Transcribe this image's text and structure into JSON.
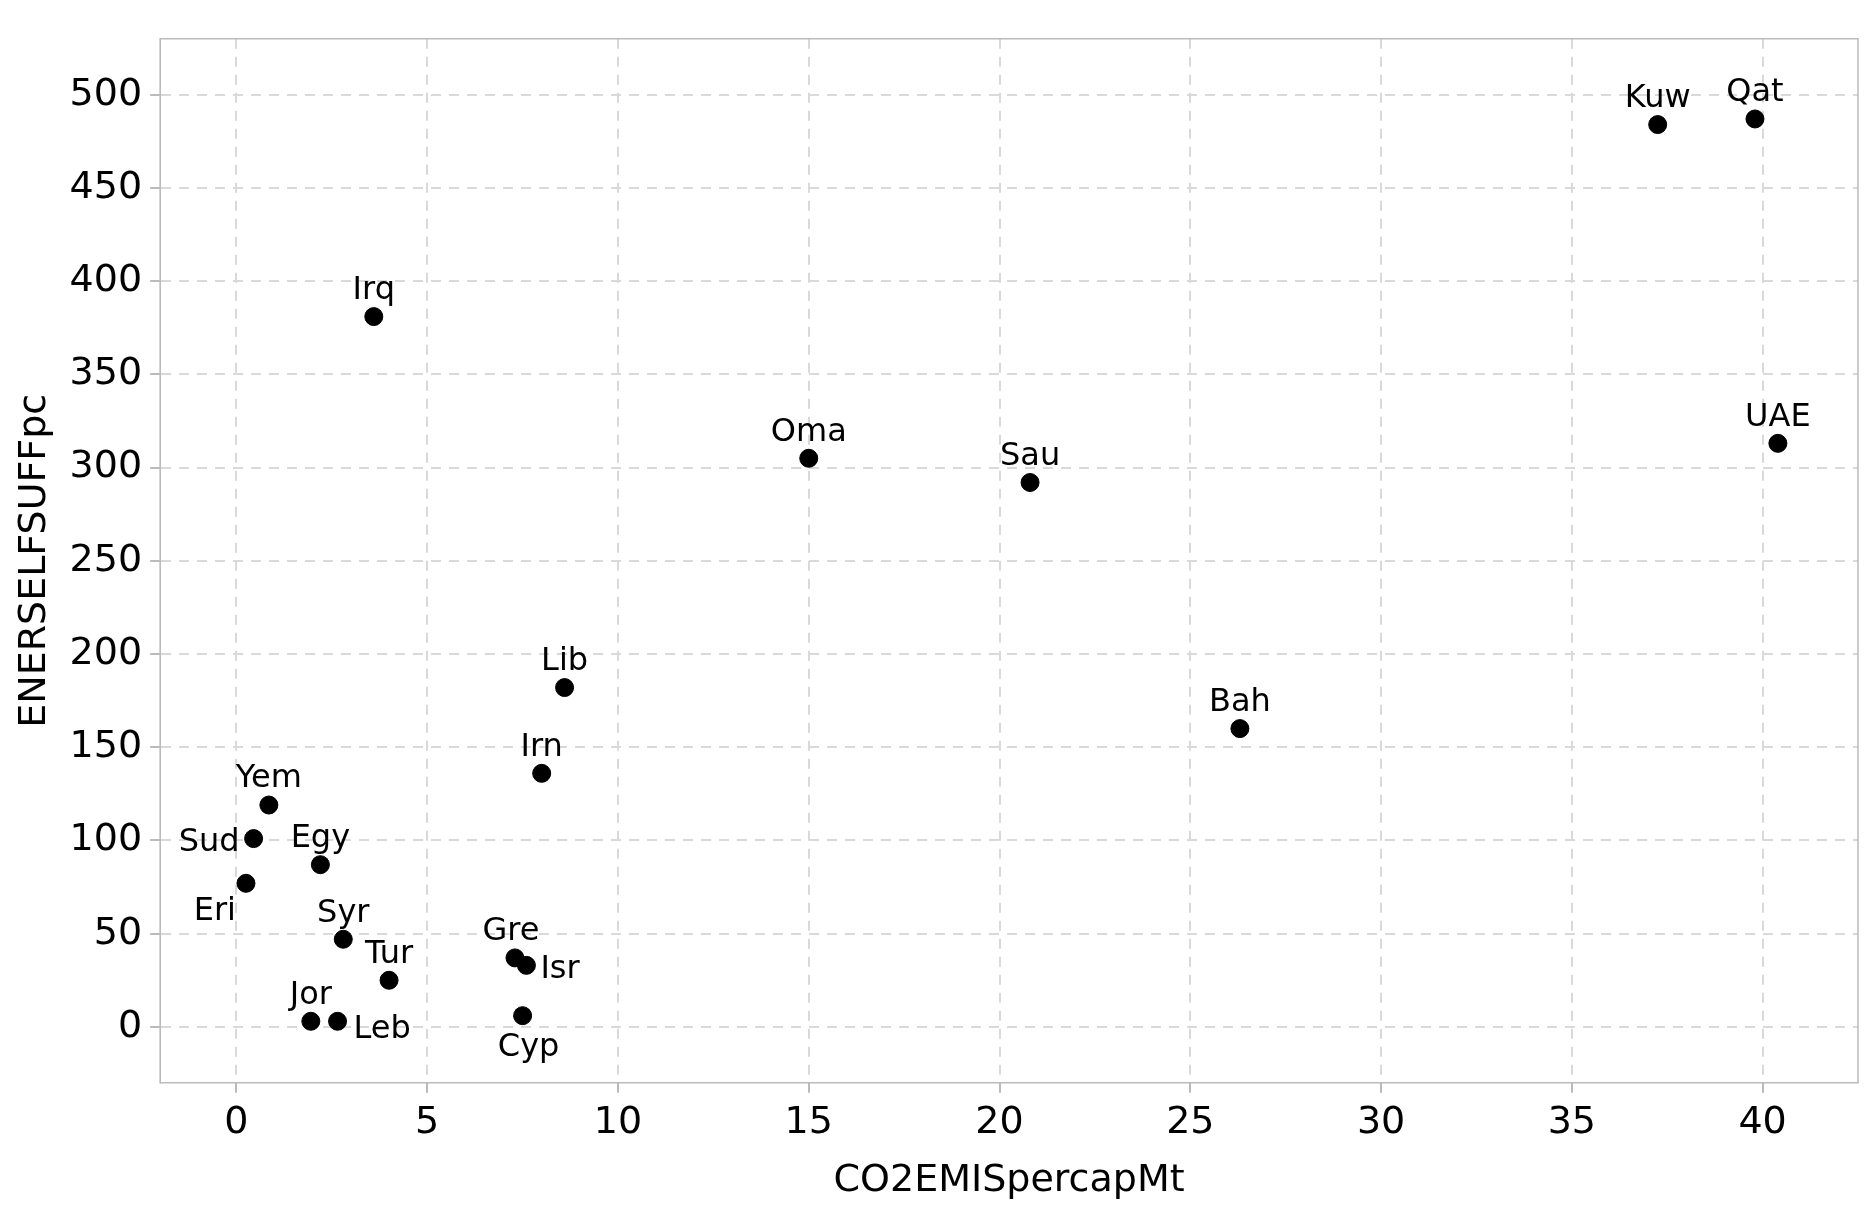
{
  "chart_data": {
    "type": "scatter",
    "xlabel": "CO2EMISpercapMt",
    "ylabel": "ENERSELFSUFFpc",
    "color": "#000000",
    "marker": "circle",
    "grid": true,
    "legend": false,
    "x": [
      37.25,
      39.8,
      40.4,
      3.6,
      15.0,
      20.8,
      8.6,
      8.0,
      26.3,
      0.85,
      0.45,
      2.2,
      0.25,
      2.8,
      4.0,
      7.3,
      7.6,
      7.5,
      1.95,
      2.65
    ],
    "values": [
      484,
      487,
      313,
      381,
      305,
      292,
      182,
      136,
      160,
      119,
      101,
      87,
      77,
      47,
      25,
      37,
      33,
      6,
      3,
      3
    ],
    "annotations": [
      {
        "text": "Kuw",
        "x": 37.25,
        "y": 484
      },
      {
        "text": "Qat",
        "x": 39.8,
        "y": 487
      },
      {
        "text": "UAE",
        "x": 40.4,
        "y": 313
      },
      {
        "text": "Irq",
        "x": 3.6,
        "y": 381
      },
      {
        "text": "Oma",
        "x": 15.0,
        "y": 305
      },
      {
        "text": "Sau",
        "x": 20.8,
        "y": 292
      },
      {
        "text": "Lib",
        "x": 8.6,
        "y": 182
      },
      {
        "text": "Irn",
        "x": 8.0,
        "y": 136
      },
      {
        "text": "Bah",
        "x": 26.3,
        "y": 160
      },
      {
        "text": "Yem",
        "x": 0.85,
        "y": 119
      },
      {
        "text": "Sud",
        "x": 0.45,
        "y": 101
      },
      {
        "text": "Egy",
        "x": 2.2,
        "y": 87
      },
      {
        "text": "Eri",
        "x": 0.25,
        "y": 77
      },
      {
        "text": "Syr",
        "x": 2.8,
        "y": 47
      },
      {
        "text": "Tur",
        "x": 4.0,
        "y": 25
      },
      {
        "text": "Gre",
        "x": 7.3,
        "y": 37
      },
      {
        "text": "Isr",
        "x": 7.6,
        "y": 33
      },
      {
        "text": "Cyp",
        "x": 7.5,
        "y": 6
      },
      {
        "text": "Jor",
        "x": 1.95,
        "y": 3
      },
      {
        "text": "Leb",
        "x": 2.65,
        "y": 3
      }
    ],
    "xlim": [
      -2,
      42.5
    ],
    "xticks": [
      0,
      5,
      10,
      15,
      20,
      25,
      30,
      35,
      40
    ],
    "ylim": [
      -30,
      530
    ],
    "yticks": [
      0,
      50,
      100,
      150,
      200,
      250,
      300,
      350,
      400,
      450,
      500
    ]
  }
}
